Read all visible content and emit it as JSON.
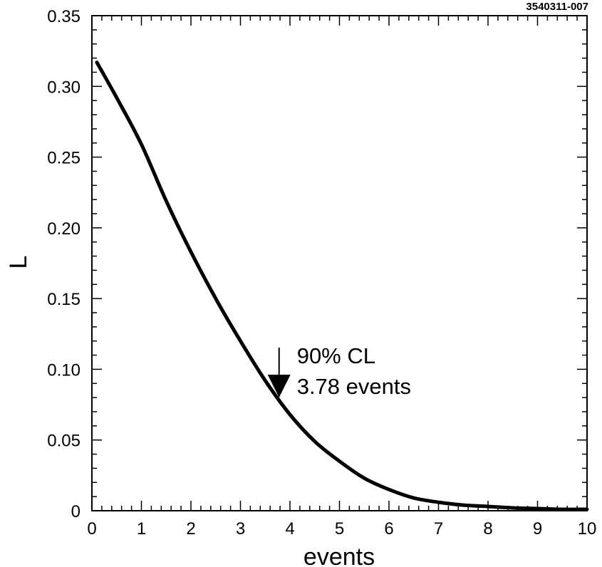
{
  "figure_id": "3540311-007",
  "chart_data": {
    "type": "line",
    "xlabel": "events",
    "ylabel": "L",
    "xlim": [
      0,
      10
    ],
    "ylim": [
      0,
      0.35
    ],
    "x_ticks": [
      "0",
      "1",
      "2",
      "3",
      "4",
      "5",
      "6",
      "7",
      "8",
      "9",
      "10"
    ],
    "y_ticks": [
      "0",
      "0.05",
      "0.10",
      "0.15",
      "0.20",
      "0.25",
      "0.30",
      "0.35"
    ],
    "grid": false,
    "series": [
      {
        "x": [
          0.1,
          0.5,
          1.0,
          1.5,
          2.0,
          2.5,
          3.0,
          3.5,
          4.0,
          4.5,
          5.0,
          5.5,
          6.0,
          6.5,
          7.0,
          7.5,
          8.0,
          8.5,
          9.0,
          9.5,
          10.0
        ],
        "y": [
          0.317,
          0.292,
          0.259,
          0.219,
          0.183,
          0.15,
          0.12,
          0.092,
          0.068,
          0.049,
          0.035,
          0.023,
          0.015,
          0.009,
          0.006,
          0.004,
          0.003,
          0.002,
          0.0015,
          0.001,
          0.001
        ]
      }
    ],
    "annotation": {
      "x": 3.78,
      "line1": "90% CL",
      "line2": "3.78 events"
    }
  }
}
